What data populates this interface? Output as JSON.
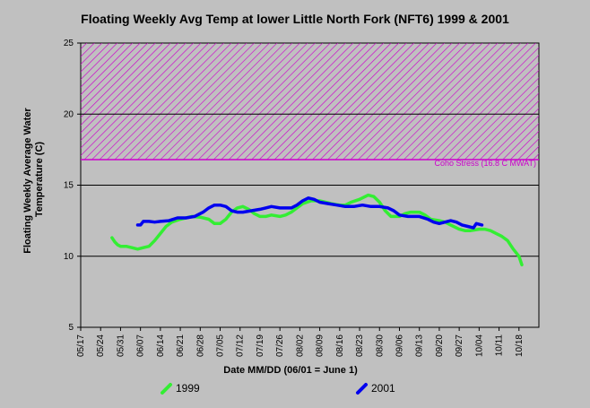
{
  "chart_data": {
    "type": "line",
    "title": "Floating Weekly Avg Temp at lower Little North Fork (NFT6) 1999 & 2001",
    "xlabel": "Date MM/DD (06/01 = June 1)",
    "ylabel_lines": [
      "Floating Weekly Average Water",
      "Temperature (C)"
    ],
    "ylim": [
      5,
      25
    ],
    "yticks": [
      5,
      10,
      15,
      20,
      25
    ],
    "grid_lines": [
      10,
      15,
      20
    ],
    "x_range": [
      "05/17",
      "10/25"
    ],
    "x_ticks": [
      "05/17",
      "05/24",
      "05/31",
      "06/07",
      "06/14",
      "06/21",
      "06/28",
      "07/05",
      "07/12",
      "07/19",
      "07/26",
      "08/02",
      "08/09",
      "08/16",
      "08/23",
      "08/30",
      "09/06",
      "09/13",
      "09/20",
      "09/27",
      "10/04",
      "10/11",
      "10/18"
    ],
    "stress_band": {
      "label": "Coho Stress (16.8 C MWAT)",
      "from": 16.8,
      "to": 25,
      "color": "#cc00cc"
    },
    "series": [
      {
        "name": "1999",
        "color": "#33ee33",
        "points": [
          [
            "05/28",
            11.3
          ],
          [
            "05/29",
            11.0
          ],
          [
            "05/30",
            10.8
          ],
          [
            "05/31",
            10.7
          ],
          [
            "06/02",
            10.7
          ],
          [
            "06/04",
            10.6
          ],
          [
            "06/06",
            10.5
          ],
          [
            "06/08",
            10.6
          ],
          [
            "06/10",
            10.7
          ],
          [
            "06/12",
            11.1
          ],
          [
            "06/14",
            11.6
          ],
          [
            "06/16",
            12.1
          ],
          [
            "06/18",
            12.4
          ],
          [
            "06/21",
            12.6
          ],
          [
            "06/23",
            12.7
          ],
          [
            "06/25",
            12.8
          ],
          [
            "06/28",
            12.75
          ],
          [
            "07/01",
            12.6
          ],
          [
            "07/03",
            12.3
          ],
          [
            "07/05",
            12.3
          ],
          [
            "07/07",
            12.6
          ],
          [
            "07/09",
            13.1
          ],
          [
            "07/11",
            13.4
          ],
          [
            "07/13",
            13.5
          ],
          [
            "07/15",
            13.3
          ],
          [
            "07/17",
            13.0
          ],
          [
            "07/19",
            12.8
          ],
          [
            "07/21",
            12.8
          ],
          [
            "07/23",
            12.9
          ],
          [
            "07/26",
            12.8
          ],
          [
            "07/28",
            12.9
          ],
          [
            "07/30",
            13.1
          ],
          [
            "08/01",
            13.4
          ],
          [
            "08/03",
            13.7
          ],
          [
            "08/06",
            13.9
          ],
          [
            "08/09",
            13.9
          ],
          [
            "08/11",
            13.8
          ],
          [
            "08/13",
            13.7
          ],
          [
            "08/16",
            13.6
          ],
          [
            "08/18",
            13.6
          ],
          [
            "08/20",
            13.8
          ],
          [
            "08/23",
            14.0
          ],
          [
            "08/26",
            14.3
          ],
          [
            "08/28",
            14.2
          ],
          [
            "08/30",
            13.8
          ],
          [
            "09/01",
            13.2
          ],
          [
            "09/03",
            12.8
          ],
          [
            "09/06",
            12.8
          ],
          [
            "09/08",
            13.0
          ],
          [
            "09/10",
            13.1
          ],
          [
            "09/13",
            13.1
          ],
          [
            "09/15",
            12.9
          ],
          [
            "09/17",
            12.6
          ],
          [
            "09/20",
            12.5
          ],
          [
            "09/22",
            12.4
          ],
          [
            "09/24",
            12.2
          ],
          [
            "09/27",
            11.9
          ],
          [
            "09/29",
            11.8
          ],
          [
            "10/01",
            11.8
          ],
          [
            "10/04",
            11.9
          ],
          [
            "10/06",
            11.9
          ],
          [
            "10/08",
            11.8
          ],
          [
            "10/10",
            11.6
          ],
          [
            "10/12",
            11.4
          ],
          [
            "10/14",
            11.1
          ],
          [
            "10/16",
            10.5
          ],
          [
            "10/18",
            10.0
          ],
          [
            "10/19",
            9.4
          ]
        ]
      },
      {
        "name": "2001",
        "color": "#0000ee",
        "points": [
          [
            "06/06",
            12.2
          ],
          [
            "06/07",
            12.2
          ],
          [
            "06/08",
            12.45
          ],
          [
            "06/10",
            12.45
          ],
          [
            "06/12",
            12.4
          ],
          [
            "06/14",
            12.45
          ],
          [
            "06/17",
            12.5
          ],
          [
            "06/20",
            12.7
          ],
          [
            "06/23",
            12.7
          ],
          [
            "06/26",
            12.8
          ],
          [
            "06/29",
            13.1
          ],
          [
            "07/01",
            13.4
          ],
          [
            "07/03",
            13.6
          ],
          [
            "07/05",
            13.6
          ],
          [
            "07/07",
            13.5
          ],
          [
            "07/09",
            13.2
          ],
          [
            "07/11",
            13.1
          ],
          [
            "07/13",
            13.1
          ],
          [
            "07/16",
            13.2
          ],
          [
            "07/19",
            13.3
          ],
          [
            "07/21",
            13.4
          ],
          [
            "07/23",
            13.5
          ],
          [
            "07/26",
            13.4
          ],
          [
            "07/28",
            13.4
          ],
          [
            "07/30",
            13.4
          ],
          [
            "08/01",
            13.6
          ],
          [
            "08/03",
            13.9
          ],
          [
            "08/05",
            14.1
          ],
          [
            "08/07",
            14.0
          ],
          [
            "08/09",
            13.8
          ],
          [
            "08/12",
            13.7
          ],
          [
            "08/15",
            13.6
          ],
          [
            "08/18",
            13.5
          ],
          [
            "08/21",
            13.5
          ],
          [
            "08/24",
            13.6
          ],
          [
            "08/27",
            13.5
          ],
          [
            "08/30",
            13.5
          ],
          [
            "09/02",
            13.4
          ],
          [
            "09/04",
            13.2
          ],
          [
            "09/06",
            12.9
          ],
          [
            "09/09",
            12.8
          ],
          [
            "09/13",
            12.8
          ],
          [
            "09/16",
            12.6
          ],
          [
            "09/18",
            12.4
          ],
          [
            "09/20",
            12.3
          ],
          [
            "09/22",
            12.4
          ],
          [
            "09/24",
            12.5
          ],
          [
            "09/26",
            12.4
          ],
          [
            "09/28",
            12.2
          ],
          [
            "09/30",
            12.1
          ],
          [
            "10/02",
            12.0
          ],
          [
            "10/03",
            12.3
          ],
          [
            "10/05",
            12.2
          ]
        ]
      }
    ],
    "legend_placement": "bottom",
    "grid": true
  }
}
